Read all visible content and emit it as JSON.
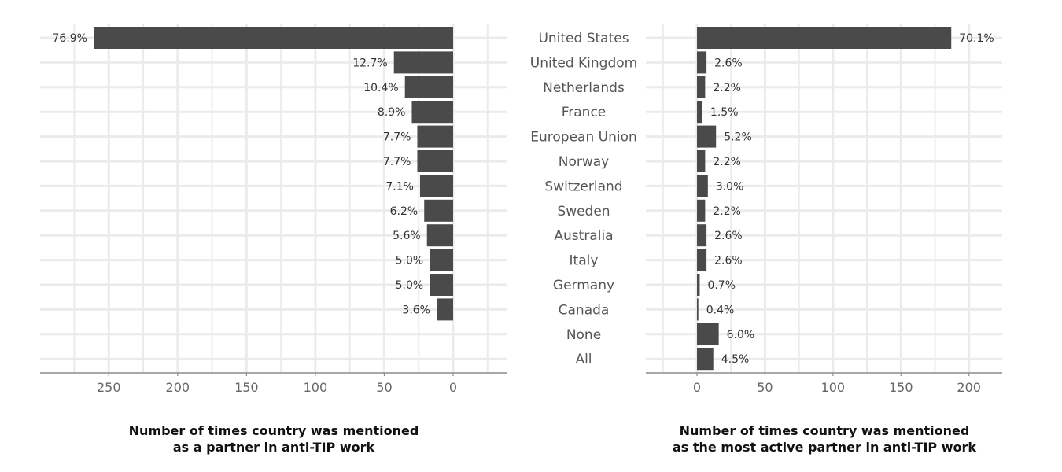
{
  "chart_data": [
    {
      "type": "bar",
      "orientation": "horizontal",
      "direction": "reversed",
      "xlabel": [
        "Number of times country was mentioned",
        "as a partner in anti-TIP work"
      ],
      "xlim": [
        0,
        300
      ],
      "xticks": [
        250,
        200,
        150,
        100,
        50,
        0
      ],
      "grid": true,
      "categories": [
        "United States",
        "United Kingdom",
        "Netherlands",
        "France",
        "European Union",
        "Norway",
        "Switzerland",
        "Sweden",
        "Australia",
        "Italy",
        "Germany",
        "Canada",
        "None",
        "All"
      ],
      "values": [
        261,
        43,
        35,
        30,
        26,
        26,
        24,
        21,
        19,
        17,
        17,
        12,
        null,
        null
      ],
      "labels": [
        "76.9%",
        "12.7%",
        "10.4%",
        "8.9%",
        "7.7%",
        "7.7%",
        "7.1%",
        "6.2%",
        "5.6%",
        "5.0%",
        "5.0%",
        "3.6%",
        null,
        null
      ],
      "bar_color": "#4a4a4a"
    },
    {
      "type": "bar",
      "orientation": "horizontal",
      "xlabel": [
        "Number of times country was mentioned",
        "as the most active partner in anti-TIP work"
      ],
      "xlim": [
        -37,
        225
      ],
      "xticks": [
        0,
        50,
        100,
        150,
        200
      ],
      "grid": true,
      "categories": [
        "United States",
        "United Kingdom",
        "Netherlands",
        "France",
        "European Union",
        "Norway",
        "Switzerland",
        "Sweden",
        "Australia",
        "Italy",
        "Germany",
        "Canada",
        "None",
        "All"
      ],
      "values": [
        187,
        7,
        6,
        4,
        14,
        6,
        8,
        6,
        7,
        7,
        2,
        1,
        16,
        12
      ],
      "labels": [
        "70.1%",
        "2.6%",
        "2.2%",
        "1.5%",
        "5.2%",
        "2.2%",
        "3.0%",
        "2.2%",
        "2.6%",
        "2.6%",
        "0.7%",
        "0.4%",
        "6.0%",
        "4.5%"
      ],
      "bar_color": "#4a4a4a"
    }
  ]
}
